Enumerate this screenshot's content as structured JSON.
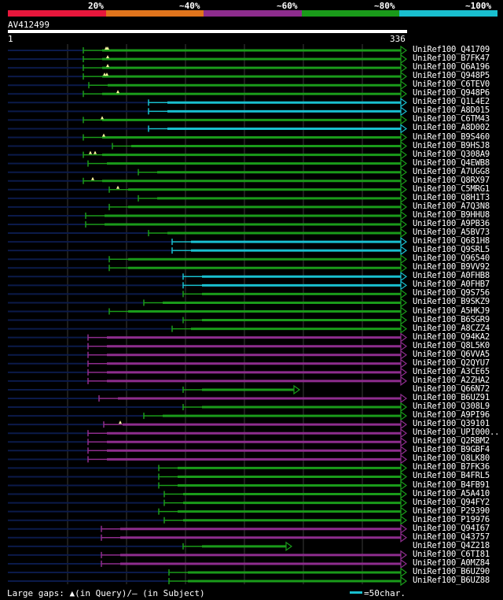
{
  "identity_legend": [
    {
      "label": "20%",
      "color": "#e8173c"
    },
    {
      "label": "~40%",
      "color": "#e0741c"
    },
    {
      "label": "~60%",
      "color": "#8e2d8e"
    },
    {
      "label": "~80%",
      "color": "#1a9b1a"
    },
    {
      "label": "~100%",
      "color": "#19bfcf"
    }
  ],
  "query": {
    "name": "AV412499",
    "start": "1",
    "end": "336"
  },
  "hits": [
    {
      "name": "UniRef100_Q41709",
      "start": 106,
      "color": "green",
      "gaps": [
        135,
        137
      ]
    },
    {
      "name": "UniRef100_B7FK47",
      "start": 106,
      "color": "green",
      "gaps": [
        137
      ]
    },
    {
      "name": "UniRef100_Q6A196",
      "start": 106,
      "color": "green",
      "gaps": [
        137
      ]
    },
    {
      "name": "UniRef100_Q948P5",
      "start": 106,
      "color": "green",
      "gaps": [
        133,
        136
      ]
    },
    {
      "name": "UniRef100_C6TEV0",
      "start": 113,
      "color": "green",
      "gaps": []
    },
    {
      "name": "UniRef100_Q948P6",
      "start": 106,
      "color": "green",
      "gaps": [
        150
      ]
    },
    {
      "name": "UniRef100_Q1L4E2",
      "start": 189,
      "color": "cyan",
      "gaps": []
    },
    {
      "name": "UniRef100_A8D015",
      "start": 189,
      "color": "cyan",
      "gaps": []
    },
    {
      "name": "UniRef100_C6TM43",
      "start": 106,
      "color": "green",
      "gaps": [
        130
      ]
    },
    {
      "name": "UniRef100_A8D002",
      "start": 189,
      "color": "cyan",
      "gaps": []
    },
    {
      "name": "UniRef100_B9S460",
      "start": 106,
      "color": "green",
      "gaps": [
        132
      ]
    },
    {
      "name": "UniRef100_B9HSJ8",
      "start": 143,
      "color": "green",
      "gaps": []
    },
    {
      "name": "UniRef100_Q308A9",
      "start": 106,
      "color": "green",
      "gaps": [
        115,
        121
      ]
    },
    {
      "name": "UniRef100_Q4EWB8",
      "start": 112,
      "color": "green",
      "gaps": []
    },
    {
      "name": "UniRef100_A7UGG8",
      "start": 176,
      "color": "green",
      "gaps": []
    },
    {
      "name": "UniRef100_Q8RX97",
      "start": 106,
      "color": "green",
      "gaps": [
        118
      ]
    },
    {
      "name": "UniRef100_C5MRG1",
      "start": 139,
      "color": "green",
      "gaps": [
        150
      ]
    },
    {
      "name": "UniRef100_Q8H1T3",
      "start": 176,
      "color": "green",
      "gaps": []
    },
    {
      "name": "UniRef100_A7Q3N8",
      "start": 139,
      "color": "green",
      "gaps": []
    },
    {
      "name": "UniRef100_B9HHU8",
      "start": 109,
      "color": "green",
      "gaps": []
    },
    {
      "name": "UniRef100_A9PB36",
      "start": 109,
      "color": "green",
      "gaps": []
    },
    {
      "name": "UniRef100_A5BV73",
      "start": 189,
      "color": "green",
      "gaps": []
    },
    {
      "name": "UniRef100_Q681H8",
      "start": 219,
      "color": "cyan",
      "gaps": []
    },
    {
      "name": "UniRef100_Q9SRL5",
      "start": 219,
      "color": "cyan",
      "gaps": []
    },
    {
      "name": "UniRef100_Q96540",
      "start": 139,
      "color": "green",
      "gaps": []
    },
    {
      "name": "UniRef100_B9VV92",
      "start": 139,
      "color": "green",
      "gaps": []
    },
    {
      "name": "UniRef100_A0FHB8",
      "start": 233,
      "color": "cyan",
      "gaps": []
    },
    {
      "name": "UniRef100_A0FHB7",
      "start": 233,
      "color": "cyan",
      "gaps": []
    },
    {
      "name": "UniRef100_Q9S756",
      "start": 233,
      "color": "green",
      "gaps": []
    },
    {
      "name": "UniRef100_B9SKZ9",
      "start": 183,
      "color": "green",
      "gaps": []
    },
    {
      "name": "UniRef100_A5HKJ9",
      "start": 139,
      "color": "green",
      "gaps": []
    },
    {
      "name": "UniRef100_B6SGR9",
      "start": 233,
      "color": "green",
      "gaps": []
    },
    {
      "name": "UniRef100_A8CZZ4",
      "start": 219,
      "color": "green",
      "gaps": []
    },
    {
      "name": "UniRef100_Q94KA2",
      "start": 112,
      "color": "purple",
      "gaps": []
    },
    {
      "name": "UniRef100_Q8L5K0",
      "start": 112,
      "color": "purple",
      "gaps": []
    },
    {
      "name": "UniRef100_Q6VVA5",
      "start": 112,
      "color": "purple",
      "gaps": []
    },
    {
      "name": "UniRef100_Q2QYU7",
      "start": 112,
      "color": "purple",
      "gaps": []
    },
    {
      "name": "UniRef100_A3CE65",
      "start": 112,
      "color": "purple",
      "gaps": []
    },
    {
      "name": "UniRef100_A2ZHA2",
      "start": 112,
      "color": "purple",
      "gaps": []
    },
    {
      "name": "UniRef100_Q66N72",
      "start": 233,
      "color": "green",
      "end": 374,
      "gaps": []
    },
    {
      "name": "UniRef100_B6UZ91",
      "start": 126,
      "color": "purple",
      "gaps": []
    },
    {
      "name": "UniRef100_Q308L9",
      "start": 233,
      "color": "green",
      "gaps": []
    },
    {
      "name": "UniRef100_A9PI96",
      "start": 183,
      "color": "green",
      "gaps": []
    },
    {
      "name": "UniRef100_Q39101",
      "start": 132,
      "color": "purple",
      "gaps": [
        153
      ]
    },
    {
      "name": "UniRef100_UPI000..",
      "start": 112,
      "color": "purple",
      "gaps": []
    },
    {
      "name": "UniRef100_Q2RBM2",
      "start": 112,
      "color": "purple",
      "gaps": []
    },
    {
      "name": "UniRef100_B9GBF4",
      "start": 112,
      "color": "purple",
      "gaps": []
    },
    {
      "name": "UniRef100_Q8LK80",
      "start": 112,
      "color": "purple",
      "gaps": []
    },
    {
      "name": "UniRef100_B7FK36",
      "start": 202,
      "color": "green",
      "gaps": []
    },
    {
      "name": "UniRef100_B4FRL5",
      "start": 202,
      "color": "green",
      "gaps": []
    },
    {
      "name": "UniRef100_B4FB91",
      "start": 202,
      "color": "green",
      "gaps": []
    },
    {
      "name": "UniRef100_A5A410",
      "start": 209,
      "color": "green",
      "gaps": []
    },
    {
      "name": "UniRef100_Q94FY2",
      "start": 209,
      "color": "green",
      "gaps": []
    },
    {
      "name": "UniRef100_P29390",
      "start": 202,
      "color": "green",
      "gaps": []
    },
    {
      "name": "UniRef100_P19976",
      "start": 209,
      "color": "green",
      "gaps": []
    },
    {
      "name": "UniRef100_Q94I67",
      "start": 129,
      "color": "purple",
      "gaps": []
    },
    {
      "name": "UniRef100_Q43757",
      "start": 129,
      "color": "purple",
      "gaps": []
    },
    {
      "name": "UniRef100_Q4Z218",
      "start": 233,
      "color": "green",
      "end": 364,
      "gaps": []
    },
    {
      "name": "UniRef100_C6TI81",
      "start": 129,
      "color": "purple",
      "gaps": []
    },
    {
      "name": "UniRef100_A0MZ84",
      "start": 129,
      "color": "purple",
      "gaps": []
    },
    {
      "name": "UniRef100_B6UZ90",
      "start": 215,
      "color": "green",
      "gaps": []
    },
    {
      "name": "UniRef100_B6UZ88",
      "start": 215,
      "color": "green",
      "gaps": []
    }
  ],
  "colors": {
    "green": "#1a9b1a",
    "cyan": "#19bfcf",
    "purple": "#8e2d8e",
    "gap_marker": "#ffffa0",
    "unaligned": "#0b1a4a",
    "gridline": "#3a3a3a"
  },
  "footer": {
    "large_gaps": "Large gaps: ▲(in Query)/– (in Subject)",
    "scale": "=50char."
  }
}
